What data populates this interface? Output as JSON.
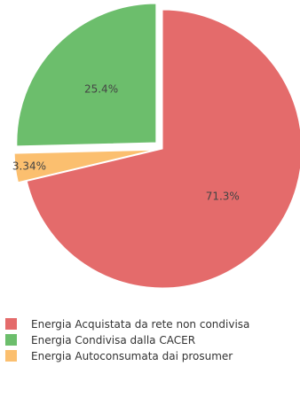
{
  "chart_data": {
    "type": "pie",
    "title": "",
    "slices": [
      {
        "name": "Energia Acquistata da rete non condivisa",
        "value": 71.3,
        "label": "71.3%",
        "color": "#e46b6b",
        "exploded": false
      },
      {
        "name": "Energia Autoconsumata dai prosumer",
        "value": 3.34,
        "label": "3.34%",
        "color": "#fbbf6f",
        "exploded": true
      },
      {
        "name": "Energia Condivisa dalla CACER",
        "value": 25.4,
        "label": "25.4%",
        "color": "#6cbe6c",
        "exploded": true
      }
    ],
    "legend": {
      "placement": "bottom-left",
      "items": [
        {
          "name": "Energia Acquistata da rete non condivisa",
          "color": "#e46b6b"
        },
        {
          "name": "Energia Condivisa dalla CACER",
          "color": "#6cbe6c"
        },
        {
          "name": "Energia Autoconsumata dai prosumer",
          "color": "#fbbf6f"
        }
      ]
    }
  }
}
